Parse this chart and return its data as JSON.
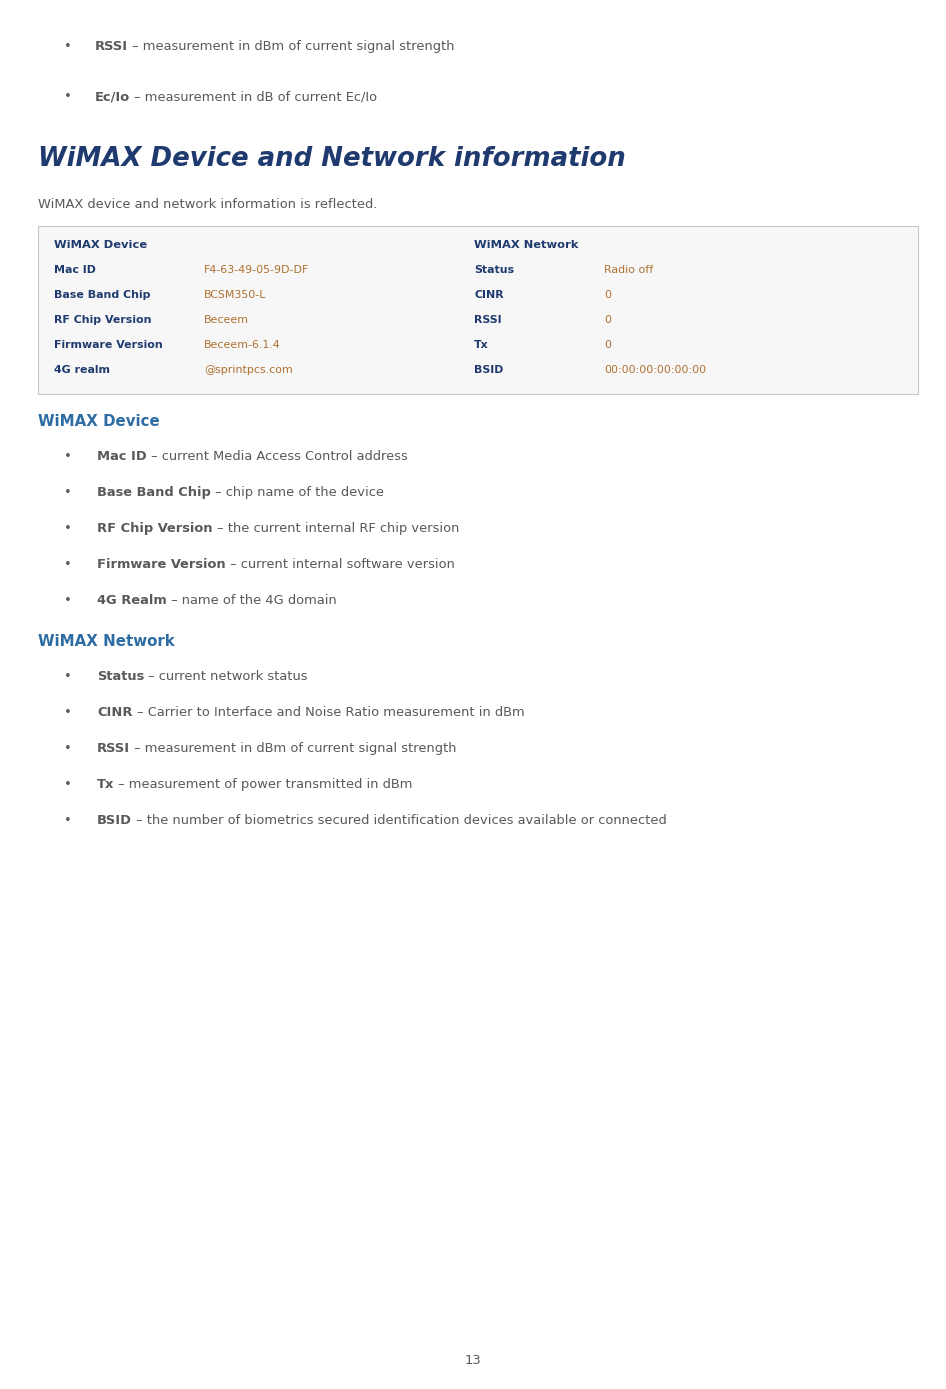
{
  "bg_color": "#ffffff",
  "page_number": "13",
  "blue_color": "#1f3a6e",
  "gray_color": "#595959",
  "orange_color": "#b07030",
  "dark_blue_bold": "#1f3a6e",
  "subheader_blue": "#2e6da4",
  "top_bullets": [
    {
      "bold": "RSSI",
      "rest": " – measurement in dBm of current signal strength"
    },
    {
      "bold": "Ec/Io",
      "rest": " – measurement in dB of current Ec/Io"
    }
  ],
  "section_title": "WiMAX Device and Network information",
  "section_subtitle": "WiMAX device and network information is reflected.",
  "table": {
    "left_header": "WiMAX Device",
    "left_rows": [
      {
        "label": "Mac ID",
        "value": "F4-63-49-05-9D-DF"
      },
      {
        "label": "Base Band Chip",
        "value": "BCSM350-L"
      },
      {
        "label": "RF Chip Version",
        "value": "Beceem"
      },
      {
        "label": "Firmware Version",
        "value": "Beceem-6.1.4"
      },
      {
        "label": "4G realm",
        "value": "@sprintpcs.com"
      }
    ],
    "right_header": "WiMAX Network",
    "right_rows": [
      {
        "label": "Status",
        "value": "Radio off"
      },
      {
        "label": "CINR",
        "value": "0"
      },
      {
        "label": "RSSI",
        "value": "0"
      },
      {
        "label": "Tx",
        "value": "0"
      },
      {
        "label": "BSID",
        "value": "00:00:00:00:00:00"
      }
    ]
  },
  "wimax_device_header": "WiMAX Device",
  "wimax_device_bullets": [
    {
      "bold": "Mac ID",
      "rest": " – current Media Access Control address"
    },
    {
      "bold": "Base Band Chip",
      "rest": " – chip name of the device"
    },
    {
      "bold": "RF Chip Version",
      "rest": " – the current internal RF chip version"
    },
    {
      "bold": "Firmware Version",
      "rest": " – current internal software version"
    },
    {
      "bold": "4G Realm",
      "rest": " – name of the 4G domain"
    }
  ],
  "wimax_network_header": "WiMAX Network",
  "wimax_network_bullets": [
    {
      "bold": "Status",
      "rest": " – current network status"
    },
    {
      "bold": "CINR",
      "rest": " – Carrier to Interface and Noise Ratio measurement in dBm"
    },
    {
      "bold": "RSSI",
      "rest": " – measurement in dBm of current signal strength"
    },
    {
      "bold": "Tx",
      "rest": " – measurement of power transmitted in dBm"
    },
    {
      "bold": "BSID",
      "rest": " – the number of biometrics secured identification devices available or connected"
    }
  ]
}
